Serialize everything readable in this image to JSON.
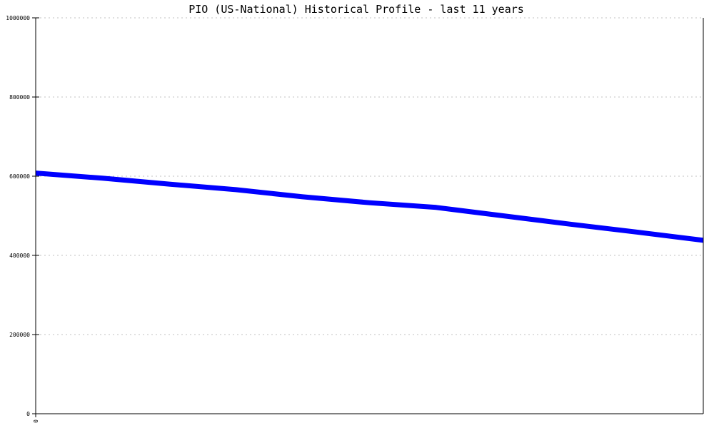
{
  "chart_data": {
    "type": "line",
    "title": "PIO (US-National) Historical Profile - last 11 years",
    "xlabel": "",
    "ylabel": "",
    "x": [
      0,
      1,
      2,
      3,
      4,
      5,
      6,
      7,
      8,
      9,
      10
    ],
    "x_tick_labels": [
      "0"
    ],
    "ylim": [
      0,
      1000000
    ],
    "y_ticks": [
      0,
      200000,
      400000,
      600000,
      800000,
      1000000
    ],
    "y_tick_labels": [
      "0",
      "200000",
      "400000",
      "600000",
      "800000",
      "1000000"
    ],
    "grid": "horizontal dotted",
    "series": [
      {
        "values": [
          608000,
          595000,
          580000,
          566000,
          548000,
          533000,
          521000,
          500000,
          479000,
          459000,
          438000
        ],
        "color": "#0000ff"
      }
    ],
    "colors": {
      "line": "#0000ff",
      "grid": "#c0c0c0",
      "axis": "#000000"
    }
  }
}
